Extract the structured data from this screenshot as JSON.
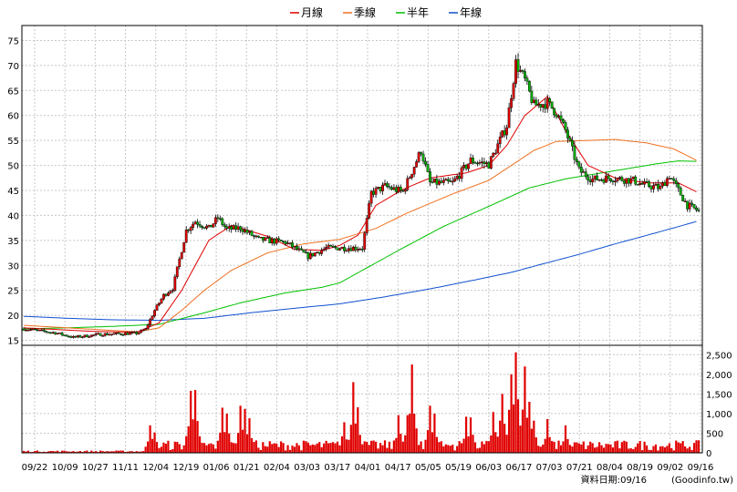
{
  "legend": [
    {
      "label": "月線",
      "color": "#e00000"
    },
    {
      "label": "季線",
      "color": "#f07020"
    },
    {
      "label": "半年",
      "color": "#00c000"
    },
    {
      "label": "年線",
      "color": "#1050d0"
    }
  ],
  "footer": {
    "label": "資料日期:",
    "date": "09/16",
    "source": "(Goodinfo.tw)"
  },
  "colors": {
    "up": "#e00000",
    "down": "#00b000",
    "volume": "#e00000"
  },
  "chart_data": {
    "type": "candlestick",
    "price_axis": {
      "ylim": [
        14,
        78
      ],
      "ticks": [
        15,
        20,
        25,
        30,
        35,
        40,
        45,
        50,
        55,
        60,
        65,
        70,
        75
      ]
    },
    "volume_axis": {
      "ylim": [
        0,
        2600
      ],
      "ticks": [
        0,
        500,
        1000,
        1500,
        2000,
        2500
      ],
      "tick_labels": [
        "0",
        "500",
        "1,000",
        "1,500",
        "2,000",
        "2,500"
      ]
    },
    "x_ticks": [
      "09/22",
      "10/09",
      "10/27",
      "11/11",
      "12/04",
      "12/19",
      "01/06",
      "01/21",
      "02/04",
      "03/03",
      "03/17",
      "04/01",
      "04/17",
      "05/05",
      "05/19",
      "06/03",
      "06/17",
      "07/03",
      "07/21",
      "08/04",
      "08/19",
      "09/02",
      "09/16"
    ],
    "close_keypoints": [
      [
        0,
        17.3
      ],
      [
        14,
        16.5
      ],
      [
        22,
        15.6
      ],
      [
        34,
        16.2
      ],
      [
        50,
        16.4
      ],
      [
        54,
        17.2
      ],
      [
        58,
        21
      ],
      [
        62,
        24
      ],
      [
        66,
        25.4
      ],
      [
        72,
        37
      ],
      [
        76,
        38.8
      ],
      [
        82,
        37.4
      ],
      [
        86,
        39.5
      ],
      [
        90,
        37.2
      ],
      [
        96,
        37.5
      ],
      [
        104,
        35.2
      ],
      [
        116,
        34.6
      ],
      [
        126,
        31.8
      ],
      [
        134,
        33.5
      ],
      [
        150,
        33.5
      ],
      [
        154,
        44.5
      ],
      [
        160,
        45.8
      ],
      [
        168,
        44.7
      ],
      [
        176,
        53
      ],
      [
        180,
        46.5
      ],
      [
        190,
        46.5
      ],
      [
        198,
        51
      ],
      [
        206,
        50.2
      ],
      [
        214,
        58
      ],
      [
        218,
        70.5
      ],
      [
        222,
        67
      ],
      [
        226,
        62
      ],
      [
        232,
        62.5
      ],
      [
        236,
        60.5
      ],
      [
        240,
        57
      ],
      [
        246,
        49
      ],
      [
        252,
        47.2
      ],
      [
        260,
        47.5
      ],
      [
        270,
        47
      ],
      [
        274,
        46.2
      ],
      [
        282,
        45.5
      ],
      [
        286,
        48
      ],
      [
        294,
        42
      ],
      [
        299,
        40.9
      ]
    ],
    "ma_month": [
      [
        0,
        17.5
      ],
      [
        30,
        16.8
      ],
      [
        50,
        16.6
      ],
      [
        60,
        18.5
      ],
      [
        70,
        25
      ],
      [
        82,
        35
      ],
      [
        92,
        38
      ],
      [
        108,
        35.8
      ],
      [
        120,
        33.2
      ],
      [
        132,
        33
      ],
      [
        140,
        34
      ],
      [
        148,
        36
      ],
      [
        156,
        42
      ],
      [
        168,
        45.2
      ],
      [
        180,
        47.5
      ],
      [
        196,
        48.5
      ],
      [
        206,
        50
      ],
      [
        214,
        54
      ],
      [
        222,
        60
      ],
      [
        232,
        63.8
      ],
      [
        240,
        57
      ],
      [
        250,
        50
      ],
      [
        262,
        47.5
      ],
      [
        276,
        46.5
      ],
      [
        290,
        46.5
      ],
      [
        299,
        44.5
      ]
    ],
    "ma_quarter": [
      [
        0,
        18
      ],
      [
        50,
        16.7
      ],
      [
        60,
        17.5
      ],
      [
        70,
        21
      ],
      [
        80,
        25
      ],
      [
        92,
        29
      ],
      [
        108,
        32.5
      ],
      [
        124,
        34.3
      ],
      [
        140,
        35.2
      ],
      [
        156,
        37.4
      ],
      [
        170,
        40.5
      ],
      [
        190,
        44.3
      ],
      [
        206,
        47
      ],
      [
        216,
        50
      ],
      [
        226,
        53
      ],
      [
        236,
        54.8
      ],
      [
        250,
        55
      ],
      [
        262,
        55.2
      ],
      [
        276,
        54.5
      ],
      [
        288,
        53.3
      ],
      [
        299,
        50.8
      ]
    ],
    "ma_halfyear": [
      [
        0,
        17.3
      ],
      [
        20,
        17.5
      ],
      [
        40,
        17.8
      ],
      [
        60,
        18.2
      ],
      [
        80,
        20.5
      ],
      [
        96,
        22.5
      ],
      [
        116,
        24.5
      ],
      [
        132,
        25.6
      ],
      [
        140,
        26.5
      ],
      [
        150,
        29
      ],
      [
        166,
        33
      ],
      [
        186,
        37.8
      ],
      [
        206,
        41.8
      ],
      [
        224,
        45.5
      ],
      [
        240,
        47.3
      ],
      [
        260,
        48.8
      ],
      [
        280,
        50.3
      ],
      [
        290,
        50.9
      ],
      [
        299,
        50.8
      ]
    ],
    "ma_year": [
      [
        0,
        19.8
      ],
      [
        20,
        19.4
      ],
      [
        40,
        19.1
      ],
      [
        60,
        19
      ],
      [
        80,
        19.4
      ],
      [
        100,
        20.5
      ],
      [
        120,
        21.4
      ],
      [
        140,
        22.3
      ],
      [
        160,
        23.7
      ],
      [
        180,
        25.3
      ],
      [
        200,
        27.1
      ],
      [
        216,
        28.6
      ],
      [
        230,
        30.3
      ],
      [
        246,
        32.2
      ],
      [
        262,
        34.3
      ],
      [
        280,
        36.5
      ],
      [
        299,
        38.9
      ]
    ],
    "volume_spikes": [
      [
        56,
        700
      ],
      [
        58,
        520
      ],
      [
        74,
        1580
      ],
      [
        76,
        1600
      ],
      [
        88,
        1150
      ],
      [
        90,
        1000
      ],
      [
        96,
        1200
      ],
      [
        98,
        1120
      ],
      [
        100,
        880
      ],
      [
        142,
        780
      ],
      [
        146,
        1800
      ],
      [
        148,
        1160
      ],
      [
        166,
        960
      ],
      [
        170,
        960
      ],
      [
        172,
        2250
      ],
      [
        180,
        1200
      ],
      [
        182,
        1000
      ],
      [
        196,
        920
      ],
      [
        198,
        900
      ],
      [
        208,
        1040
      ],
      [
        212,
        1500
      ],
      [
        216,
        2000
      ],
      [
        218,
        2560
      ],
      [
        222,
        2200
      ],
      [
        224,
        1300
      ],
      [
        226,
        820
      ],
      [
        232,
        860
      ],
      [
        240,
        700
      ]
    ]
  }
}
